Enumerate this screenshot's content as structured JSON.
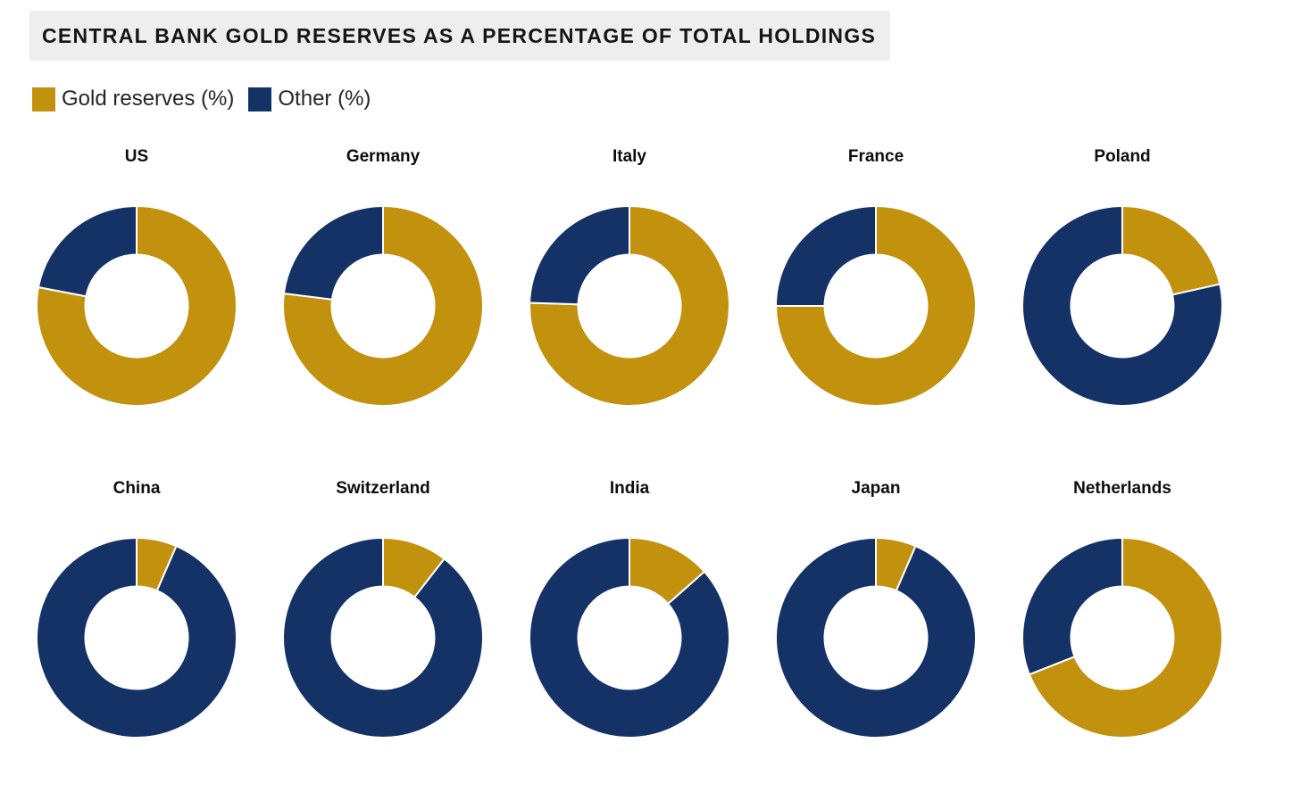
{
  "header": {
    "title": "CENTRAL BANK GOLD RESERVES AS A PERCENTAGE OF TOTAL HOLDINGS",
    "background": "#eeeeee"
  },
  "legend": {
    "position": "top-left",
    "items": [
      {
        "label": "Gold reserves (%)",
        "color": "#c2920e",
        "series_key": "gold_reserves_pct"
      },
      {
        "label": "Other (%)",
        "color": "#143266",
        "series_key": "other_pct"
      }
    ]
  },
  "chart_data": {
    "type": "pie",
    "variant": "donut-small-multiples",
    "unit": "%",
    "title": "CENTRAL BANK GOLD RESERVES AS A PERCENTAGE OF TOTAL HOLDINGS",
    "series_labels": [
      "Gold reserves (%)",
      "Other (%)"
    ],
    "colors": {
      "gold_reserves": "#c2920e",
      "other": "#143266",
      "separator": "#ffffff"
    },
    "layout": {
      "columns": 5,
      "rows": 2,
      "inner_radius_ratio": 0.51,
      "start_angle_deg": 0,
      "direction": "clockwise",
      "grid": false,
      "legend_position": "top-left"
    },
    "charts": [
      {
        "label": "US",
        "gold_reserves_pct": 78,
        "other_pct": 22
      },
      {
        "label": "Germany",
        "gold_reserves_pct": 77,
        "other_pct": 23
      },
      {
        "label": "Italy",
        "gold_reserves_pct": 75.5,
        "other_pct": 24.5
      },
      {
        "label": "France",
        "gold_reserves_pct": 75,
        "other_pct": 25
      },
      {
        "label": "Poland",
        "gold_reserves_pct": 21.5,
        "other_pct": 78.5
      },
      {
        "label": "China",
        "gold_reserves_pct": 6.5,
        "other_pct": 93.5
      },
      {
        "label": "Switzerland",
        "gold_reserves_pct": 10.5,
        "other_pct": 89.5
      },
      {
        "label": "India",
        "gold_reserves_pct": 13.5,
        "other_pct": 86.5
      },
      {
        "label": "Japan",
        "gold_reserves_pct": 6.5,
        "other_pct": 93.5
      },
      {
        "label": "Netherlands",
        "gold_reserves_pct": 69,
        "other_pct": 31
      }
    ]
  }
}
